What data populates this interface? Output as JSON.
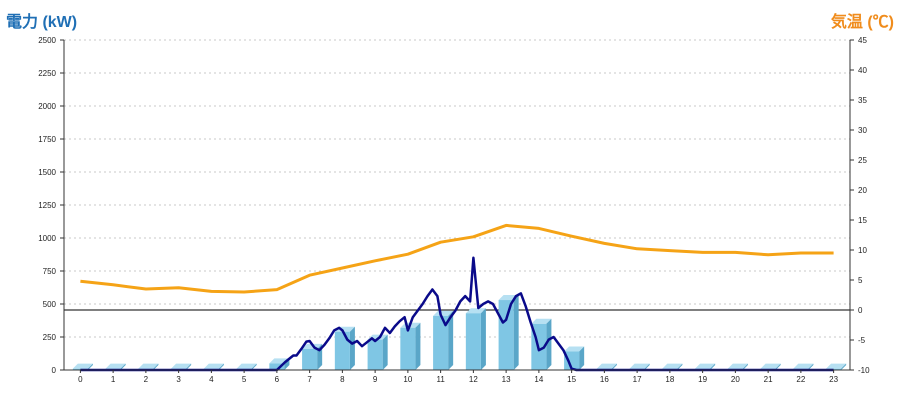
{
  "chart_data": {
    "type": "bar",
    "y_left_label": "電力 (kW)",
    "y_right_label": "気温 (℃)",
    "left_ticks": [
      "2500",
      "2250",
      "2000",
      "1750",
      "1500",
      "1250",
      "1000",
      "750",
      "500",
      "250",
      "0"
    ],
    "right_ticks": [
      "45",
      "40",
      "35",
      "30",
      "25",
      "20",
      "15",
      "10",
      "5",
      "0",
      "-5",
      "-10"
    ],
    "x_ticks": [
      "0",
      "1",
      "2",
      "3",
      "4",
      "5",
      "6",
      "7",
      "8",
      "9",
      "10",
      "11",
      "12",
      "13",
      "14",
      "15",
      "16",
      "17",
      "18",
      "19",
      "20",
      "21",
      "22",
      "23"
    ],
    "ylim_left": [
      0,
      2500
    ],
    "ylim_right": [
      -10,
      45
    ],
    "grid": true,
    "colors": {
      "bars": "#7fc6e4",
      "power_line": "#0a0a8a",
      "temperature_line": "#f5a316",
      "zero_line": "#000000"
    },
    "series": [
      {
        "kind": "bar",
        "axis": "left",
        "values": [
          10,
          10,
          10,
          10,
          10,
          10,
          50,
          160,
          290,
          230,
          320,
          410,
          430,
          530,
          350,
          140,
          10,
          10,
          10,
          10,
          10,
          10,
          10,
          10
        ]
      },
      {
        "kind": "line",
        "axis": "right",
        "x": [
          0,
          1,
          2,
          3,
          4,
          5,
          6,
          7,
          8,
          9,
          10,
          11,
          12,
          13,
          14,
          15,
          16,
          17,
          18,
          19,
          20,
          21,
          22,
          23
        ],
        "values": [
          4.8,
          4.2,
          3.5,
          3.7,
          3.1,
          3.0,
          3.4,
          5.8,
          7.0,
          8.2,
          9.3,
          11.3,
          12.2,
          14.1,
          13.6,
          12.3,
          11.1,
          10.2,
          9.9,
          9.6,
          9.6,
          9.2,
          9.5,
          9.5
        ]
      },
      {
        "kind": "line",
        "axis": "left",
        "x": [
          0,
          1,
          2,
          3,
          4,
          5,
          5.5,
          6,
          6.25,
          6.5,
          6.6,
          6.75,
          6.9,
          7,
          7.15,
          7.3,
          7.45,
          7.6,
          7.75,
          7.9,
          8,
          8.15,
          8.3,
          8.45,
          8.6,
          8.75,
          8.9,
          9,
          9.15,
          9.3,
          9.45,
          9.6,
          9.75,
          9.9,
          10,
          10.15,
          10.3,
          10.45,
          10.6,
          10.75,
          10.9,
          11,
          11.15,
          11.3,
          11.45,
          11.6,
          11.75,
          11.9,
          12,
          12.15,
          12.3,
          12.45,
          12.6,
          12.75,
          12.9,
          13,
          13.15,
          13.3,
          13.45,
          13.6,
          13.75,
          13.9,
          14,
          14.15,
          14.3,
          14.45,
          14.6,
          14.75,
          14.9,
          15,
          15.15,
          15.3,
          16,
          17,
          18,
          19,
          20,
          21,
          22,
          23
        ],
        "values": [
          0,
          0,
          0,
          0,
          0,
          0,
          0,
          0,
          60,
          110,
          110,
          160,
          215,
          220,
          170,
          150,
          190,
          240,
          300,
          320,
          300,
          230,
          200,
          220,
          180,
          210,
          240,
          220,
          250,
          320,
          280,
          330,
          370,
          400,
          300,
          400,
          450,
          500,
          560,
          610,
          560,
          420,
          340,
          400,
          450,
          520,
          560,
          520,
          850,
          470,
          500,
          520,
          500,
          430,
          360,
          380,
          500,
          560,
          580,
          480,
          360,
          250,
          150,
          170,
          230,
          250,
          200,
          150,
          70,
          10,
          0,
          0,
          0,
          0,
          0,
          0,
          0,
          0,
          0,
          0
        ]
      }
    ]
  }
}
